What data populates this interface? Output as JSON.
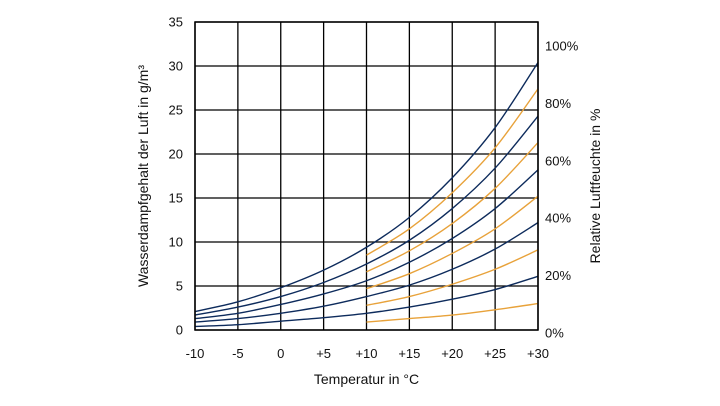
{
  "chart_data": {
    "type": "line",
    "title": "",
    "xlabel": "Temperatur in °C",
    "ylabel": "Wasserdampfgehalt der Luft in g/m³",
    "y2label": "Relative Luftfeuchte in %",
    "xlim": [
      -10,
      30
    ],
    "ylim": [
      0,
      35
    ],
    "grid": true,
    "x_ticks": [
      -10,
      -5,
      0,
      5,
      10,
      15,
      20,
      25,
      30
    ],
    "x_tick_labels": [
      "-10",
      "-5",
      "0",
      "+5",
      "+10",
      "+15",
      "+20",
      "+25",
      "+30"
    ],
    "y_ticks": [
      0,
      5,
      10,
      15,
      20,
      25,
      30,
      35
    ],
    "y_tick_labels": [
      "0",
      "5",
      "10",
      "15",
      "20",
      "25",
      "30",
      "35"
    ],
    "y2_ticks": [
      0,
      20,
      40,
      60,
      80,
      100
    ],
    "y2_tick_labels": [
      "0%",
      "20%",
      "40%",
      "60%",
      "80%",
      "100%"
    ],
    "x": [
      -10,
      -5,
      0,
      5,
      10,
      15,
      20,
      25,
      30
    ],
    "colors": {
      "navy": "#0d2b5c",
      "orange": "#e8a23a",
      "grid": "#000000"
    },
    "series": [
      {
        "rh": 100,
        "color": "navy",
        "x": [
          -10,
          -5,
          0,
          5,
          10,
          15,
          20,
          25,
          30
        ],
        "values": [
          2.1,
          3.2,
          4.8,
          6.8,
          9.4,
          12.8,
          17.3,
          23.0,
          30.4
        ]
      },
      {
        "rh": 80,
        "color": "navy",
        "x": [
          -10,
          -5,
          0,
          5,
          10,
          15,
          20,
          25,
          30
        ],
        "values": [
          1.7,
          2.6,
          3.8,
          5.4,
          7.5,
          10.2,
          13.8,
          18.4,
          24.3
        ]
      },
      {
        "rh": 60,
        "color": "navy",
        "x": [
          -10,
          -5,
          0,
          5,
          10,
          15,
          20,
          25,
          30
        ],
        "values": [
          1.3,
          1.9,
          2.9,
          4.1,
          5.6,
          7.7,
          10.4,
          13.8,
          18.2
        ]
      },
      {
        "rh": 40,
        "color": "navy",
        "x": [
          -10,
          -5,
          0,
          5,
          10,
          15,
          20,
          25,
          30
        ],
        "values": [
          0.9,
          1.3,
          1.9,
          2.7,
          3.8,
          5.1,
          6.9,
          9.2,
          12.2
        ]
      },
      {
        "rh": 20,
        "color": "navy",
        "x": [
          -10,
          -5,
          0,
          5,
          10,
          15,
          20,
          25,
          30
        ],
        "values": [
          0.4,
          0.6,
          1.0,
          1.4,
          1.9,
          2.6,
          3.5,
          4.6,
          6.1
        ]
      },
      {
        "rh": 90,
        "color": "orange",
        "x": [
          10,
          15,
          20,
          25,
          30
        ],
        "values": [
          8.5,
          11.5,
          15.6,
          20.7,
          27.4
        ]
      },
      {
        "rh": 70,
        "color": "orange",
        "x": [
          10,
          15,
          20,
          25,
          30
        ],
        "values": [
          6.6,
          9.0,
          12.1,
          16.1,
          21.3
        ]
      },
      {
        "rh": 50,
        "color": "orange",
        "x": [
          10,
          15,
          20,
          25,
          30
        ],
        "values": [
          4.7,
          6.4,
          8.7,
          11.5,
          15.2
        ]
      },
      {
        "rh": 30,
        "color": "orange",
        "x": [
          10,
          15,
          20,
          25,
          30
        ],
        "values": [
          2.8,
          3.8,
          5.2,
          6.9,
          9.1
        ]
      },
      {
        "rh": 10,
        "color": "orange",
        "x": [
          10,
          15,
          20,
          25,
          30
        ],
        "values": [
          0.9,
          1.3,
          1.7,
          2.3,
          3.0
        ]
      }
    ]
  }
}
